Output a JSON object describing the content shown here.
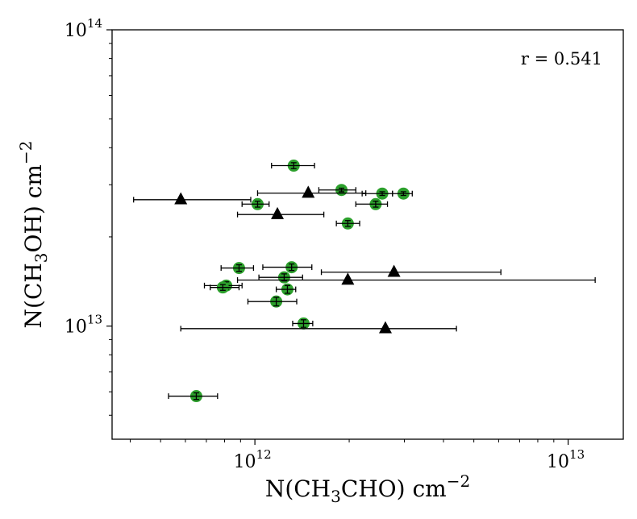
{
  "chart_data": {
    "type": "scatter",
    "title": "",
    "xlabel": {
      "pre": "N(CH",
      "sub": "3",
      "mid": "CHO) cm",
      "sup": "−2"
    },
    "ylabel": {
      "pre": "N(CH",
      "sub": "3",
      "mid": "OH) cm",
      "sup": "−2"
    },
    "xscale": "log",
    "yscale": "log",
    "xlim": [
      350000000000.0,
      15000000000000.0
    ],
    "ylim": [
      4150000000000.0,
      100000000000000.0
    ],
    "xticks": [
      {
        "value": 1000000000000.0,
        "base": "10",
        "exp": "12"
      },
      {
        "value": 10000000000000.0,
        "base": "10",
        "exp": "13"
      }
    ],
    "yticks": [
      {
        "value": 10000000000000.0,
        "base": "10",
        "exp": "13"
      },
      {
        "value": 100000000000000.0,
        "base": "10",
        "exp": "14"
      }
    ],
    "annotation": "r = 0.541",
    "grid": false,
    "legend": "none",
    "series": [
      {
        "marker": "circle",
        "color": "#2ca02c",
        "points": [
          {
            "x": 1330000000000.0,
            "y": 34800000000000.0,
            "xerr": [
              1130000000000.0,
              1550000000000.0
            ],
            "yerr": [
              34000000000000.0,
              35600000000000.0
            ]
          },
          {
            "x": 1890000000000.0,
            "y": 28800000000000.0,
            "xerr": [
              1600000000000.0,
              2100000000000.0
            ],
            "yerr": [
              28400000000000.0,
              29200000000000.0
            ]
          },
          {
            "x": 2550000000000.0,
            "y": 28000000000000.0,
            "xerr": [
              2200000000000.0,
              2750000000000.0
            ],
            "yerr": [
              27600000000000.0,
              28400000000000.0
            ]
          },
          {
            "x": 2980000000000.0,
            "y": 28000000000000.0,
            "xerr": [
              2750000000000.0,
              3180000000000.0
            ],
            "yerr": [
              27600000000000.0,
              28400000000000.0
            ]
          },
          {
            "x": 1020000000000.0,
            "y": 25800000000000.0,
            "xerr": [
              910000000000.0,
              1110000000000.0
            ],
            "yerr": [
              25200000000000.0,
              26400000000000.0
            ]
          },
          {
            "x": 2430000000000.0,
            "y": 25800000000000.0,
            "xerr": [
              2100000000000.0,
              2650000000000.0
            ],
            "yerr": [
              25200000000000.0,
              26400000000000.0
            ]
          },
          {
            "x": 1980000000000.0,
            "y": 22200000000000.0,
            "xerr": [
              1820000000000.0,
              2160000000000.0
            ],
            "yerr": [
              21700000000000.0,
              22700000000000.0
            ]
          },
          {
            "x": 890000000000.0,
            "y": 15700000000000.0,
            "xerr": [
              780000000000.0,
              990000000000.0
            ],
            "yerr": [
              15300000000000.0,
              16100000000000.0
            ]
          },
          {
            "x": 1310000000000.0,
            "y": 15800000000000.0,
            "xerr": [
              1060000000000.0,
              1520000000000.0
            ],
            "yerr": [
              15400000000000.0,
              16200000000000.0
            ]
          },
          {
            "x": 1240000000000.0,
            "y": 14600000000000.0,
            "xerr": [
              1030000000000.0,
              1420000000000.0
            ],
            "yerr": [
              14200000000000.0,
              15000000000000.0
            ]
          },
          {
            "x": 810000000000.0,
            "y": 13700000000000.0,
            "xerr": [
              690000000000.0,
              910000000000.0
            ],
            "yerr": [
              13300000000000.0,
              14100000000000.0
            ]
          },
          {
            "x": 790000000000.0,
            "y": 13500000000000.0,
            "xerr": [
              720000000000.0,
              890000000000.0
            ],
            "yerr": [
              13200000000000.0,
              13800000000000.0
            ]
          },
          {
            "x": 1270000000000.0,
            "y": 13300000000000.0,
            "xerr": [
              1170000000000.0,
              1350000000000.0
            ],
            "yerr": [
              12900000000000.0,
              13700000000000.0
            ]
          },
          {
            "x": 1170000000000.0,
            "y": 12100000000000.0,
            "xerr": [
              950000000000.0,
              1360000000000.0
            ],
            "yerr": [
              11700000000000.0,
              12500000000000.0
            ]
          },
          {
            "x": 1430000000000.0,
            "y": 10200000000000.0,
            "xerr": [
              1320000000000.0,
              1530000000000.0
            ],
            "yerr": [
              9900000000000.0,
              10500000000000.0
            ]
          },
          {
            "x": 650000000000.0,
            "y": 5800000000000.0,
            "xerr": [
              530000000000.0,
              760000000000.0
            ],
            "yerr": [
              5650000000000.0,
              5950000000000.0
            ]
          }
        ]
      },
      {
        "marker": "triangle",
        "color": "#000000",
        "points": [
          {
            "x": 580000000000.0,
            "y": 26700000000000.0,
            "xerr": [
              410000000000.0,
              970000000000.0
            ]
          },
          {
            "x": 1480000000000.0,
            "y": 28100000000000.0,
            "xerr": [
              1020000000000.0,
              2260000000000.0
            ]
          },
          {
            "x": 1180000000000.0,
            "y": 23800000000000.0,
            "xerr": [
              880000000000.0,
              1660000000000.0
            ]
          },
          {
            "x": 2780000000000.0,
            "y": 15200000000000.0,
            "xerr": [
              1630000000000.0,
              6100000000000.0
            ]
          },
          {
            "x": 1980000000000.0,
            "y": 14300000000000.0,
            "xerr": [
              880000000000.0,
              12200000000000.0
            ]
          },
          {
            "x": 2610000000000.0,
            "y": 9800000000000.0,
            "xerr": [
              580000000000.0,
              4400000000000.0
            ]
          }
        ]
      }
    ]
  }
}
